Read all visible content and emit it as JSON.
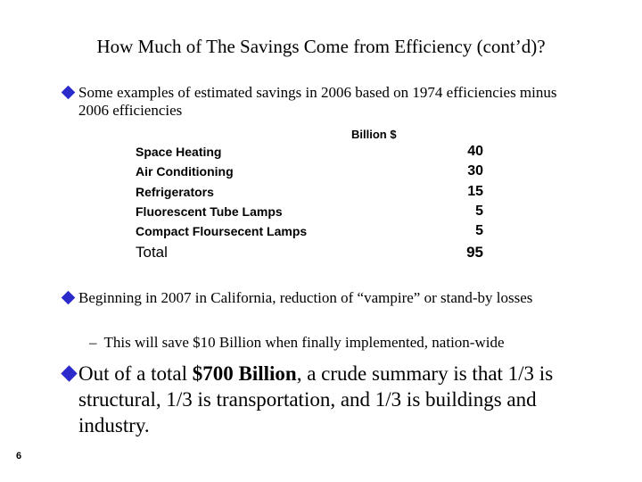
{
  "slide": {
    "title": "How Much of The Savings Come from Efficiency (cont’d)?",
    "bullet1": "Some examples of estimated savings in 2006 based on 1974 efficiencies minus 2006 efficiencies",
    "table": {
      "header": "Billion $",
      "rows": [
        {
          "label": "Space Heating",
          "value": "40"
        },
        {
          "label": "Air Conditioning",
          "value": "30"
        },
        {
          "label": "Refrigerators",
          "value": "15"
        },
        {
          "label": "Fluorescent Tube Lamps",
          "value": "5"
        },
        {
          "label": "Compact Floursecent Lamps",
          "value": "5"
        }
      ],
      "total_label": "Total",
      "total_value": "95"
    },
    "bullet2": "Beginning in 2007 in California, reduction of “vampire” or stand-by losses",
    "sub_bullet_dash": "–",
    "sub_bullet": "This will save $10 Billion when finally implemented, nation-wide",
    "bullet3_pre": "Out of a total ",
    "bullet3_bold": "$700 Billion",
    "bullet3_post": ", a crude summary is that 1/3 is structural, 1/3 is transportation, and 1/3 is buildings and industry.",
    "page_number": "6",
    "bullet_color": "#2b2bcc"
  }
}
